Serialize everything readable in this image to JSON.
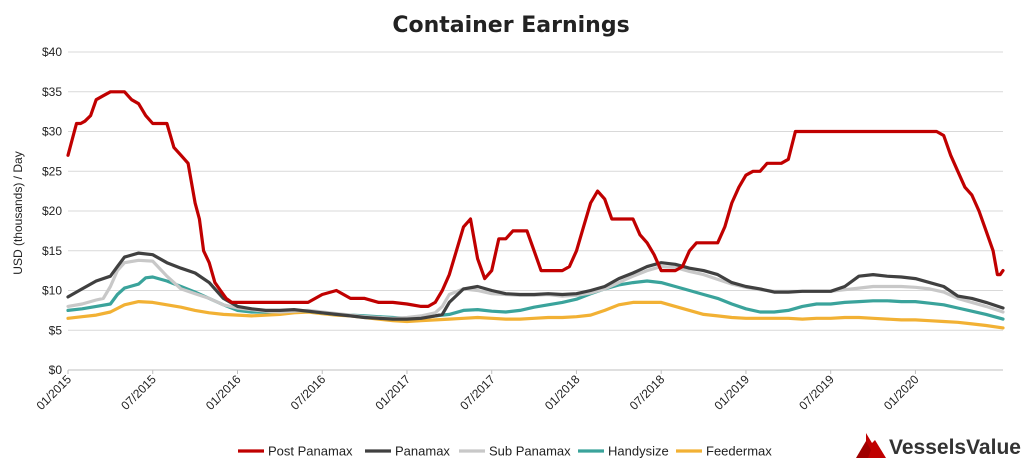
{
  "chart_data": {
    "type": "line",
    "title": "Container Earnings",
    "ylabel": "USD (thousands) / Day",
    "xlabel": "",
    "ylim": [
      0,
      40
    ],
    "y_ticks": [
      0,
      5,
      10,
      15,
      20,
      25,
      30,
      35,
      40
    ],
    "y_tick_labels": [
      "$0",
      "$5",
      "$10",
      "$15",
      "$20",
      "$25",
      "$30",
      "$35",
      "$40"
    ],
    "x_ticks": [
      0,
      6,
      12,
      18,
      24,
      30,
      36,
      42,
      48,
      54,
      60
    ],
    "x_tick_labels": [
      "01/2015",
      "07/2015",
      "01/2016",
      "07/2016",
      "01/2017",
      "07/2017",
      "01/2018",
      "07/2018",
      "01/2019",
      "07/2019",
      "01/2020"
    ],
    "x_range": [
      0,
      66.2
    ],
    "grid": true,
    "legend_position": "bottom",
    "series": [
      {
        "name": "Post Panamax",
        "color": "#c00000",
        "x": [
          0,
          0.3,
          0.6,
          0.9,
          1.2,
          1.6,
          2.0,
          2.5,
          3.0,
          3.5,
          4.0,
          4.5,
          5.0,
          5.5,
          6.0,
          6.5,
          7.0,
          7.5,
          8.0,
          8.5,
          9.0,
          9.3,
          9.6,
          10.0,
          10.4,
          10.8,
          11.2,
          11.6,
          12.0,
          12.5,
          13.0,
          14.0,
          15.0,
          16.0,
          17.0,
          18.0,
          19.0,
          20.0,
          21.0,
          22.0,
          23.0,
          24.0,
          25.0,
          25.5,
          26.0,
          26.5,
          27.0,
          27.5,
          28.0,
          28.5,
          29.0,
          29.5,
          30.0,
          30.5,
          31.0,
          31.5,
          32.0,
          32.5,
          33.0,
          33.5,
          34.0,
          34.5,
          35.0,
          35.5,
          36.0,
          36.5,
          37.0,
          37.5,
          38.0,
          38.5,
          39.0,
          39.5,
          40.0,
          40.5,
          41.0,
          41.5,
          42.0,
          42.5,
          43.0,
          43.5,
          44.0,
          44.5,
          45.0,
          45.5,
          46.0,
          46.5,
          47.0,
          47.5,
          48.0,
          48.5,
          49.0,
          49.5,
          50.0,
          50.5,
          51.0,
          51.5,
          52.0,
          52.5,
          53.0,
          53.5,
          54.0,
          54.5,
          55.0,
          56.0,
          57.0,
          58.0,
          59.0,
          60.0,
          61.0,
          61.5,
          62.0,
          62.5,
          63.0,
          63.5,
          64.0,
          64.5,
          65.0,
          65.5,
          65.8,
          66.0,
          66.2
        ],
        "values": [
          27,
          29,
          31,
          31,
          31.3,
          32,
          34,
          34.5,
          35,
          35,
          35,
          34,
          33.5,
          32,
          31,
          31,
          31,
          28,
          27,
          26,
          21,
          19,
          15,
          13.5,
          11,
          10,
          9,
          8.5,
          8.5,
          8.5,
          8.5,
          8.5,
          8.5,
          8.5,
          8.5,
          9.5,
          10,
          9,
          9,
          8.5,
          8.5,
          8.3,
          8,
          8,
          8.5,
          10,
          12,
          15,
          18,
          19,
          14,
          11.5,
          12.5,
          16.5,
          16.5,
          17.5,
          17.5,
          17.5,
          15,
          12.5,
          12.5,
          12.5,
          12.5,
          13,
          15,
          18,
          21,
          22.5,
          21.5,
          19,
          19,
          19,
          19,
          17,
          16,
          14.5,
          12.5,
          12.5,
          12.5,
          13,
          15,
          16,
          16,
          16,
          16,
          18,
          21,
          23,
          24.5,
          25,
          25,
          26,
          26,
          26,
          26.5,
          30,
          30,
          30,
          30,
          30,
          30,
          30,
          30,
          30,
          30,
          30,
          30,
          30,
          30,
          30,
          29.5,
          27,
          25,
          23,
          22,
          20,
          17.5,
          15,
          12,
          12,
          12.5
        ]
      },
      {
        "name": "Panamax",
        "color": "#404040",
        "x": [
          0,
          1,
          2,
          3,
          3.5,
          4,
          5,
          6,
          7,
          8,
          9,
          10,
          11,
          12,
          13,
          14,
          15,
          16,
          17,
          18,
          19,
          20,
          21,
          22,
          23,
          24,
          25,
          26,
          26.5,
          27,
          28,
          29,
          30,
          31,
          32,
          33,
          34,
          35,
          36,
          37,
          38,
          39,
          40,
          41,
          42,
          43,
          44,
          45,
          46,
          47,
          48,
          49,
          50,
          51,
          52,
          53,
          54,
          55,
          56,
          57,
          58,
          59,
          60,
          61,
          62,
          63,
          64,
          65,
          66.2
        ],
        "values": [
          9.2,
          10.2,
          11.2,
          11.8,
          13.0,
          14.2,
          14.7,
          14.5,
          13.5,
          12.8,
          12.2,
          11.0,
          9.0,
          8.0,
          7.7,
          7.5,
          7.5,
          7.6,
          7.4,
          7.2,
          7.0,
          6.8,
          6.6,
          6.5,
          6.4,
          6.4,
          6.5,
          6.8,
          7.0,
          8.5,
          10.2,
          10.5,
          10.0,
          9.6,
          9.5,
          9.5,
          9.6,
          9.5,
          9.6,
          10.0,
          10.5,
          11.5,
          12.2,
          13.0,
          13.5,
          13.3,
          12.8,
          12.5,
          12.0,
          11.0,
          10.5,
          10.2,
          9.8,
          9.8,
          9.9,
          9.9,
          9.9,
          10.5,
          11.8,
          12.0,
          11.8,
          11.7,
          11.5,
          11.0,
          10.5,
          9.3,
          9.0,
          8.5,
          7.8
        ]
      },
      {
        "name": "Sub Panamax",
        "color": "#c8c8c8",
        "x": [
          0,
          1,
          2,
          2.5,
          3,
          3.5,
          4,
          5,
          6,
          7,
          8,
          9,
          10,
          11,
          12,
          13,
          14,
          15,
          16,
          17,
          18,
          19,
          20,
          21,
          22,
          23,
          24,
          25,
          26,
          26.5,
          27,
          28,
          29,
          30,
          31,
          32,
          33,
          34,
          35,
          36,
          37,
          38,
          39,
          40,
          41,
          42,
          43,
          44,
          45,
          46,
          47,
          48,
          49,
          50,
          51,
          52,
          53,
          54,
          55,
          56,
          57,
          58,
          59,
          60,
          61,
          62,
          63,
          64,
          65,
          66.2
        ],
        "values": [
          8.0,
          8.3,
          8.8,
          9.0,
          10.5,
          12.5,
          13.5,
          13.8,
          13.7,
          11.8,
          10.2,
          9.6,
          9.0,
          8.2,
          7.8,
          7.6,
          7.4,
          7.3,
          7.4,
          7.5,
          7.3,
          7.1,
          6.9,
          6.7,
          6.6,
          6.5,
          6.6,
          6.8,
          7.2,
          8.0,
          9.5,
          10.2,
          10.0,
          9.6,
          9.5,
          9.4,
          9.4,
          9.5,
          9.3,
          9.4,
          9.7,
          10.2,
          11.0,
          11.8,
          12.5,
          13.0,
          12.9,
          12.4,
          12.0,
          11.4,
          10.8,
          10.4,
          10.1,
          9.9,
          9.9,
          9.9,
          9.9,
          9.9,
          10.1,
          10.3,
          10.5,
          10.5,
          10.5,
          10.4,
          10.2,
          9.8,
          9.0,
          8.5,
          8.0,
          7.3
        ]
      },
      {
        "name": "Handysize",
        "color": "#3aa39b",
        "x": [
          0,
          1,
          2,
          3,
          3.5,
          4,
          5,
          5.5,
          6,
          7,
          8,
          9,
          10,
          11,
          12,
          13,
          14,
          15,
          16,
          17,
          18,
          19,
          20,
          21,
          22,
          23,
          24,
          25,
          26,
          27,
          28,
          29,
          30,
          31,
          32,
          33,
          34,
          35,
          36,
          37,
          38,
          39,
          40,
          41,
          42,
          43,
          44,
          45,
          46,
          47,
          48,
          49,
          50,
          51,
          52,
          53,
          54,
          55,
          56,
          57,
          58,
          59,
          60,
          61,
          62,
          63,
          64,
          65,
          66.2
        ],
        "values": [
          7.5,
          7.7,
          8.0,
          8.3,
          9.5,
          10.3,
          10.8,
          11.6,
          11.7,
          11.2,
          10.5,
          9.8,
          9.0,
          8.2,
          7.5,
          7.3,
          7.3,
          7.4,
          7.5,
          7.4,
          7.2,
          7.0,
          6.9,
          6.8,
          6.7,
          6.6,
          6.5,
          6.6,
          6.8,
          7.0,
          7.5,
          7.6,
          7.4,
          7.3,
          7.5,
          7.9,
          8.2,
          8.5,
          8.9,
          9.6,
          10.2,
          10.7,
          11.0,
          11.2,
          11.0,
          10.5,
          10.0,
          9.5,
          9.0,
          8.3,
          7.7,
          7.3,
          7.3,
          7.5,
          8.0,
          8.3,
          8.3,
          8.5,
          8.6,
          8.7,
          8.7,
          8.6,
          8.6,
          8.4,
          8.2,
          7.8,
          7.4,
          7.0,
          6.4
        ]
      },
      {
        "name": "Feedermax",
        "color": "#f2b134",
        "x": [
          0,
          1,
          2,
          3,
          4,
          5,
          6,
          7,
          8,
          9,
          10,
          11,
          12,
          13,
          14,
          15,
          16,
          17,
          18,
          19,
          20,
          21,
          22,
          23,
          24,
          25,
          26,
          27,
          28,
          29,
          30,
          31,
          32,
          33,
          34,
          35,
          36,
          37,
          38,
          39,
          40,
          41,
          42,
          43,
          44,
          45,
          46,
          47,
          48,
          49,
          50,
          51,
          52,
          53,
          54,
          55,
          56,
          57,
          58,
          59,
          60,
          61,
          62,
          63,
          64,
          65,
          66.2
        ],
        "values": [
          6.5,
          6.7,
          6.9,
          7.3,
          8.2,
          8.6,
          8.5,
          8.2,
          7.9,
          7.5,
          7.2,
          7.0,
          6.9,
          6.8,
          6.9,
          7.0,
          7.2,
          7.3,
          7.1,
          6.9,
          6.8,
          6.6,
          6.4,
          6.2,
          6.1,
          6.2,
          6.3,
          6.4,
          6.5,
          6.6,
          6.5,
          6.4,
          6.4,
          6.5,
          6.6,
          6.6,
          6.7,
          6.9,
          7.5,
          8.2,
          8.5,
          8.5,
          8.5,
          8.0,
          7.5,
          7.0,
          6.8,
          6.6,
          6.5,
          6.5,
          6.5,
          6.5,
          6.4,
          6.5,
          6.5,
          6.6,
          6.6,
          6.5,
          6.4,
          6.3,
          6.3,
          6.2,
          6.1,
          6.0,
          5.8,
          5.6,
          5.3
        ]
      }
    ]
  },
  "branding": {
    "logo_text": "VesselsValue",
    "logo_color": "#c00000"
  }
}
